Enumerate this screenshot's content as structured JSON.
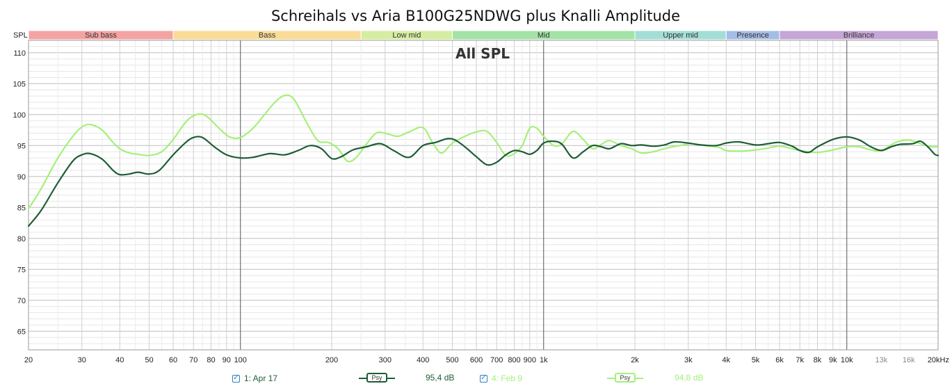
{
  "chart_data": {
    "type": "line",
    "title": "Schreihals vs Aria B100G25NDWG plus Knalli Amplitude",
    "annotation": "All SPL",
    "ylabel": "SPL",
    "x_scale": "log",
    "xlim": [
      20,
      20000
    ],
    "ylim": [
      62,
      112
    ],
    "y_ticks": [
      65,
      70,
      75,
      80,
      85,
      90,
      95,
      100,
      105,
      110
    ],
    "x_ticks": [
      {
        "value": 20,
        "label": "20"
      },
      {
        "value": 30,
        "label": "30"
      },
      {
        "value": 40,
        "label": "40"
      },
      {
        "value": 50,
        "label": "50"
      },
      {
        "value": 60,
        "label": "60"
      },
      {
        "value": 70,
        "label": "70"
      },
      {
        "value": 80,
        "label": "80"
      },
      {
        "value": 90,
        "label": "90"
      },
      {
        "value": 100,
        "label": "100"
      },
      {
        "value": 200,
        "label": "200"
      },
      {
        "value": 300,
        "label": "300"
      },
      {
        "value": 400,
        "label": "400"
      },
      {
        "value": 500,
        "label": "500"
      },
      {
        "value": 600,
        "label": "600"
      },
      {
        "value": 700,
        "label": "700"
      },
      {
        "value": 800,
        "label": "800"
      },
      {
        "value": 900,
        "label": "900"
      },
      {
        "value": 1000,
        "label": "1k"
      },
      {
        "value": 2000,
        "label": "2k"
      },
      {
        "value": 3000,
        "label": "3k"
      },
      {
        "value": 4000,
        "label": "4k"
      },
      {
        "value": 5000,
        "label": "5k"
      },
      {
        "value": 6000,
        "label": "6k"
      },
      {
        "value": 7000,
        "label": "7k"
      },
      {
        "value": 8000,
        "label": "8k"
      },
      {
        "value": 9000,
        "label": "9k"
      },
      {
        "value": 10000,
        "label": "10k"
      },
      {
        "value": 13000,
        "label": "13k"
      },
      {
        "value": 16000,
        "label": "16k"
      },
      {
        "value": 20000,
        "label": "20kHz"
      }
    ],
    "bands": [
      {
        "label": "Sub bass",
        "from": 20,
        "to": 60,
        "color": "#f4a3a3"
      },
      {
        "label": "Bass",
        "from": 60,
        "to": 250,
        "color": "#fbdc97"
      },
      {
        "label": "Low mid",
        "from": 250,
        "to": 500,
        "color": "#d5eda0"
      },
      {
        "label": "Mid",
        "from": 500,
        "to": 2000,
        "color": "#a4e3a7"
      },
      {
        "label": "Upper mid",
        "from": 2000,
        "to": 4000,
        "color": "#a3ded6"
      },
      {
        "label": "Presence",
        "from": 4000,
        "to": 6000,
        "color": "#a4bde6"
      },
      {
        "label": "Brilliance",
        "from": 6000,
        "to": 20000,
        "color": "#c5a6d6"
      }
    ],
    "grid": true,
    "series": [
      {
        "name": "1: Apr 17",
        "color": "#1e5c36",
        "checked": true,
        "psy_label": "Psy",
        "value_text": "95,4 dB",
        "points": [
          [
            20,
            82.0
          ],
          [
            22,
            84.5
          ],
          [
            25,
            89.0
          ],
          [
            28,
            92.5
          ],
          [
            30,
            93.5
          ],
          [
            32,
            93.7
          ],
          [
            35,
            92.8
          ],
          [
            38,
            91.0
          ],
          [
            40,
            90.3
          ],
          [
            43,
            90.4
          ],
          [
            46,
            90.7
          ],
          [
            50,
            90.4
          ],
          [
            54,
            91.0
          ],
          [
            60,
            93.5
          ],
          [
            66,
            95.5
          ],
          [
            70,
            96.3
          ],
          [
            75,
            96.3
          ],
          [
            82,
            94.8
          ],
          [
            90,
            93.5
          ],
          [
            100,
            93.0
          ],
          [
            110,
            93.1
          ],
          [
            125,
            93.7
          ],
          [
            140,
            93.5
          ],
          [
            155,
            94.2
          ],
          [
            170,
            95.0
          ],
          [
            185,
            94.5
          ],
          [
            200,
            92.9
          ],
          [
            215,
            93.2
          ],
          [
            235,
            94.3
          ],
          [
            260,
            94.8
          ],
          [
            290,
            95.3
          ],
          [
            320,
            94.2
          ],
          [
            360,
            93.1
          ],
          [
            400,
            95.0
          ],
          [
            440,
            95.5
          ],
          [
            480,
            96.1
          ],
          [
            510,
            95.9
          ],
          [
            550,
            94.8
          ],
          [
            600,
            93.2
          ],
          [
            650,
            91.9
          ],
          [
            700,
            92.3
          ],
          [
            750,
            93.5
          ],
          [
            800,
            94.2
          ],
          [
            850,
            94.0
          ],
          [
            900,
            93.6
          ],
          [
            950,
            94.2
          ],
          [
            1000,
            95.4
          ],
          [
            1080,
            95.7
          ],
          [
            1150,
            95.2
          ],
          [
            1250,
            93.0
          ],
          [
            1350,
            94.0
          ],
          [
            1450,
            95.0
          ],
          [
            1550,
            94.8
          ],
          [
            1650,
            94.5
          ],
          [
            1800,
            95.3
          ],
          [
            1950,
            95.0
          ],
          [
            2100,
            95.1
          ],
          [
            2300,
            94.9
          ],
          [
            2500,
            95.1
          ],
          [
            2700,
            95.6
          ],
          [
            3000,
            95.4
          ],
          [
            3300,
            95.1
          ],
          [
            3700,
            95.0
          ],
          [
            4000,
            95.4
          ],
          [
            4400,
            95.6
          ],
          [
            5000,
            95.1
          ],
          [
            5500,
            95.3
          ],
          [
            6000,
            95.5
          ],
          [
            6600,
            94.9
          ],
          [
            7000,
            94.2
          ],
          [
            7500,
            93.9
          ],
          [
            8000,
            94.8
          ],
          [
            9000,
            96.0
          ],
          [
            10000,
            96.4
          ],
          [
            11000,
            95.9
          ],
          [
            12000,
            94.8
          ],
          [
            13000,
            94.2
          ],
          [
            14000,
            94.8
          ],
          [
            15000,
            95.2
          ],
          [
            16500,
            95.3
          ],
          [
            17500,
            95.7
          ],
          [
            18500,
            94.8
          ],
          [
            19500,
            93.6
          ],
          [
            20000,
            93.4
          ]
        ]
      },
      {
        "name": "4: Feb 9",
        "color": "#a5f07a",
        "checked": true,
        "psy_label": "Psy",
        "value_text": "94,8 dB",
        "points": [
          [
            20,
            84.8
          ],
          [
            22,
            88.0
          ],
          [
            25,
            93.0
          ],
          [
            28,
            96.5
          ],
          [
            30,
            98.0
          ],
          [
            32,
            98.4
          ],
          [
            35,
            97.5
          ],
          [
            38,
            95.5
          ],
          [
            40,
            94.5
          ],
          [
            43,
            93.8
          ],
          [
            46,
            93.6
          ],
          [
            50,
            93.4
          ],
          [
            55,
            94.0
          ],
          [
            60,
            96.0
          ],
          [
            66,
            98.8
          ],
          [
            70,
            99.8
          ],
          [
            74,
            100.1
          ],
          [
            78,
            99.6
          ],
          [
            85,
            97.8
          ],
          [
            92,
            96.4
          ],
          [
            100,
            96.3
          ],
          [
            110,
            97.8
          ],
          [
            120,
            100.0
          ],
          [
            130,
            102.0
          ],
          [
            140,
            103.1
          ],
          [
            150,
            102.5
          ],
          [
            165,
            98.8
          ],
          [
            180,
            95.8
          ],
          [
            195,
            95.5
          ],
          [
            210,
            94.5
          ],
          [
            225,
            92.5
          ],
          [
            240,
            93.0
          ],
          [
            260,
            95.2
          ],
          [
            280,
            97.0
          ],
          [
            300,
            97.0
          ],
          [
            330,
            96.5
          ],
          [
            360,
            97.2
          ],
          [
            400,
            97.9
          ],
          [
            430,
            95.5
          ],
          [
            460,
            93.8
          ],
          [
            500,
            95.4
          ],
          [
            550,
            96.5
          ],
          [
            600,
            97.2
          ],
          [
            650,
            97.3
          ],
          [
            700,
            95.5
          ],
          [
            750,
            93.4
          ],
          [
            800,
            93.7
          ],
          [
            850,
            95.0
          ],
          [
            900,
            97.8
          ],
          [
            950,
            97.8
          ],
          [
            1000,
            96.5
          ],
          [
            1080,
            95.0
          ],
          [
            1150,
            95.3
          ],
          [
            1250,
            97.3
          ],
          [
            1350,
            96.0
          ],
          [
            1450,
            94.5
          ],
          [
            1550,
            95.2
          ],
          [
            1650,
            95.8
          ],
          [
            1800,
            95.0
          ],
          [
            1950,
            94.5
          ],
          [
            2100,
            93.8
          ],
          [
            2300,
            94.0
          ],
          [
            2500,
            94.5
          ],
          [
            2800,
            95.0
          ],
          [
            3100,
            95.3
          ],
          [
            3400,
            95.0
          ],
          [
            3800,
            94.7
          ],
          [
            4000,
            94.2
          ],
          [
            4500,
            94.1
          ],
          [
            5000,
            94.3
          ],
          [
            5500,
            94.6
          ],
          [
            6000,
            94.9
          ],
          [
            6600,
            94.5
          ],
          [
            7000,
            94.2
          ],
          [
            8000,
            93.9
          ],
          [
            9000,
            94.3
          ],
          [
            10000,
            94.8
          ],
          [
            11000,
            94.8
          ],
          [
            12000,
            94.3
          ],
          [
            13000,
            94.2
          ],
          [
            14500,
            95.5
          ],
          [
            16000,
            95.9
          ],
          [
            17500,
            95.3
          ],
          [
            19000,
            94.8
          ],
          [
            20000,
            94.8
          ]
        ]
      }
    ]
  }
}
